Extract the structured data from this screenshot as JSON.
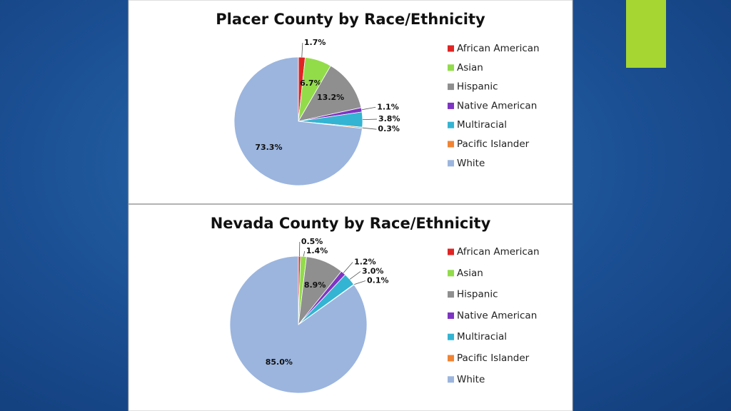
{
  "chart_data": [
    {
      "type": "pie",
      "title": "Placer County by Race/Ethnicity",
      "categories": [
        "African American",
        "Asian",
        "Hispanic",
        "Native American",
        "Multiracial",
        "Pacific Islander",
        "White"
      ],
      "values": [
        1.7,
        6.7,
        13.2,
        1.1,
        3.8,
        0.3,
        73.3
      ],
      "value_labels": [
        "1.7%",
        "6.7%",
        "13.2%",
        "1.1%",
        "3.8%",
        "0.3%",
        "73.3%"
      ],
      "colors": [
        "#e02424",
        "#92dc4a",
        "#8f8f8f",
        "#7e34c2",
        "#33b4d2",
        "#f08434",
        "#9bb5de"
      ],
      "legend": "right"
    },
    {
      "type": "pie",
      "title": "Nevada County by Race/Ethnicity",
      "categories": [
        "African American",
        "Asian",
        "Hispanic",
        "Native American",
        "Multiracial",
        "Pacific Islander",
        "White"
      ],
      "values": [
        0.5,
        1.4,
        8.9,
        1.2,
        3.0,
        0.1,
        85.0
      ],
      "value_labels": [
        "0.5%",
        "1.4%",
        "8.9%",
        "1.2%",
        "3.0%",
        "0.1%",
        "85.0%"
      ],
      "colors": [
        "#e02424",
        "#92dc4a",
        "#8f8f8f",
        "#7e34c2",
        "#33b4d2",
        "#f08434",
        "#9bb5de"
      ],
      "legend": "right"
    }
  ]
}
